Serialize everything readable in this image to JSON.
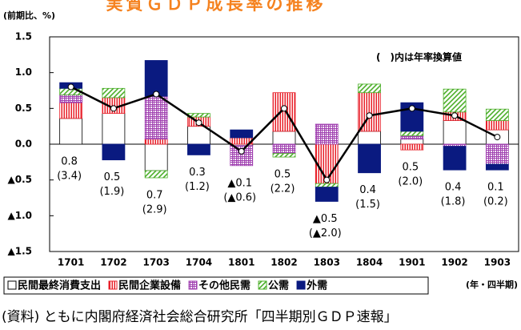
{
  "chart_data": {
    "type": "stacked-bar-line",
    "title": "実質ＧＤＰ成長率の推移",
    "y_axis_label": "(前期比、%)",
    "x_axis_label": "(年・四半期)",
    "note": "(　)内は年率換算値",
    "source": "(資料) ともに内閣府経済社会総合研究所「四半期別ＧＤＰ速報」",
    "categories": [
      "1701",
      "1702",
      "1703",
      "1704",
      "1801",
      "1802",
      "1803",
      "1804",
      "1901",
      "1902",
      "1903"
    ],
    "series": [
      {
        "name": "民間最終消費支出",
        "color": "#ffffff",
        "values": [
          0.36,
          0.43,
          -0.37,
          0.25,
          -0.02,
          0.18,
          0,
          0.18,
          0.07,
          0.33,
          0.2
        ]
      },
      {
        "name": "民間企業設備",
        "color": "#e8202a",
        "values": [
          0.22,
          0.22,
          0.07,
          0.13,
          0.09,
          0.54,
          -0.55,
          0.54,
          -0.08,
          0.12,
          0.13
        ]
      },
      {
        "name": "その他民需",
        "color": "#a040b0",
        "values": [
          0.11,
          0,
          0.6,
          0,
          -0.28,
          -0.13,
          0.28,
          0,
          0.05,
          -0.03,
          -0.28
        ]
      },
      {
        "name": "公需",
        "color": "#4caf2a",
        "values": [
          0.09,
          0.13,
          -0.1,
          0.05,
          0,
          -0.05,
          -0.05,
          0.12,
          0.06,
          0.32,
          0.16
        ]
      },
      {
        "name": "外需",
        "color": "#0a1a80",
        "values": [
          0.08,
          -0.22,
          0.5,
          -0.15,
          0.11,
          0,
          -0.2,
          -0.4,
          0.4,
          -0.33,
          -0.08
        ]
      }
    ],
    "total": {
      "values": [
        0.8,
        0.5,
        0.7,
        0.3,
        -0.1,
        0.5,
        -0.5,
        0.4,
        0.5,
        0.4,
        0.1
      ],
      "value_labels": [
        "0.8",
        "0.5",
        "0.7",
        "0.3",
        "▲0.1",
        "0.5",
        "▲0.5",
        "0.4",
        "0.5",
        "0.4",
        "0.1"
      ],
      "annualized_labels": [
        "(3.4)",
        "(1.9)",
        "(2.9)",
        "(1.2)",
        "(▲0.6)",
        "(2.2)",
        "(▲2.0)",
        "(1.5)",
        "(2.0)",
        "(1.8)",
        "(0.2)"
      ]
    },
    "ylim": [
      -1.5,
      1.5
    ],
    "yticks": [
      1.5,
      {
        "value": 1.0,
        "label": "1.0"
      },
      0.5,
      {
        "value": 0.0,
        "label": "0.0"
      },
      {
        "value": -0.5,
        "label": "▲0.5"
      },
      {
        "value": -1.0,
        "label": "▲1.0"
      },
      {
        "value": -1.5,
        "label": "▲1.5"
      }
    ]
  }
}
